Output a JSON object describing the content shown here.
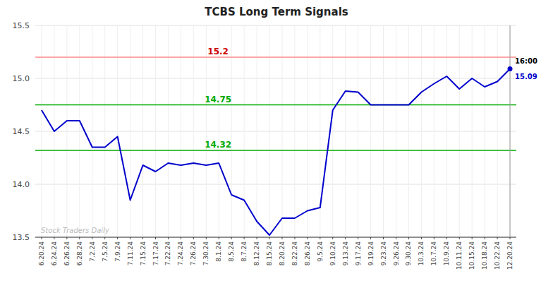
{
  "chart_data": {
    "type": "line",
    "title": "TCBS Long Term Signals",
    "categories": [
      "6.20.24",
      "6.24.24",
      "6.26.24",
      "6.28.24",
      "7.2.24",
      "7.5.24",
      "7.9.24",
      "7.11.24",
      "7.15.24",
      "7.17.24",
      "7.22.24",
      "7.24.24",
      "7.26.24",
      "7.30.24",
      "8.1.24",
      "8.5.24",
      "8.7.24",
      "8.12.24",
      "8.15.24",
      "8.20.24",
      "8.22.24",
      "8.26.24",
      "9.5.24",
      "9.10.24",
      "9.13.24",
      "9.17.24",
      "9.19.24",
      "9.23.24",
      "9.26.24",
      "9.30.24",
      "10.3.24",
      "10.7.24",
      "10.9.24",
      "10.11.24",
      "10.15.24",
      "10.18.24",
      "10.22.24",
      "12.20.24"
    ],
    "values": [
      14.7,
      14.5,
      14.6,
      14.6,
      14.35,
      14.35,
      14.45,
      13.85,
      14.18,
      14.12,
      14.2,
      14.18,
      14.2,
      14.18,
      14.2,
      13.9,
      13.85,
      13.65,
      13.52,
      13.68,
      13.68,
      13.75,
      13.78,
      14.7,
      14.88,
      14.87,
      14.75,
      14.75,
      14.75,
      14.75,
      14.87,
      14.95,
      15.02,
      14.9,
      15.0,
      14.92,
      14.97,
      15.09
    ],
    "color": "#0000cc",
    "ylim": [
      13.5,
      15.5
    ],
    "yticks": [
      13.5,
      {
        "value": 14.0,
        "label": "14.0"
      },
      14.5,
      {
        "value": 15.0,
        "label": "15.0"
      },
      15.5
    ],
    "grid": true,
    "annotations": [
      {
        "type": "hline",
        "y": 15.2,
        "label": "15.2",
        "color": "#ff8888",
        "label_color": "#cc0000"
      },
      {
        "type": "hline",
        "y": 14.75,
        "label": "14.75",
        "color": "#00aa00",
        "label_color": "#00aa00"
      },
      {
        "type": "hline",
        "y": 14.32,
        "label": "14.32",
        "color": "#00aa00",
        "label_color": "#00aa00"
      },
      {
        "type": "vline",
        "x": "12.20.24",
        "color": "#999999"
      },
      {
        "type": "point_label",
        "x": "12.20.24",
        "text": "16:00",
        "color": "#000000"
      },
      {
        "type": "point_label",
        "x": "12.20.24",
        "text": "15.09",
        "value": 15.09,
        "color": "#0000cc"
      },
      {
        "type": "watermark",
        "text": "Stock Traders Daily",
        "color": "#bbbbbb"
      }
    ]
  }
}
